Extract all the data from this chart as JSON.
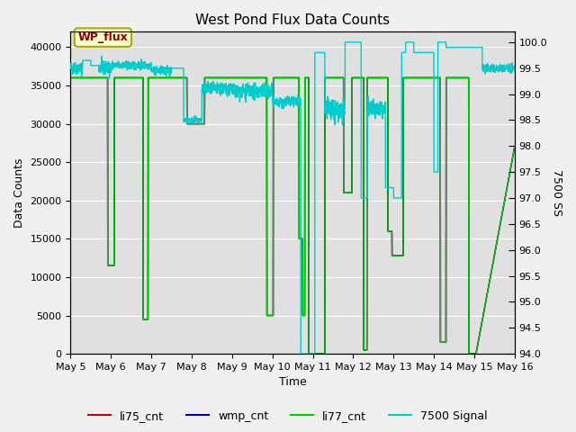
{
  "title": "West Pond Flux Data Counts",
  "xlabel": "Time",
  "ylabel_left": "Data Counts",
  "ylabel_right": "7500 SS",
  "ylim_left": [
    0,
    42000
  ],
  "ylim_right": [
    94.0,
    100.2
  ],
  "legend_labels": [
    "li75_cnt",
    "wmp_cnt",
    "li77_cnt",
    "7500 Signal"
  ],
  "legend_colors": [
    "#cc0000",
    "#000099",
    "#00cc00",
    "#00cccc"
  ],
  "wp_flux_label": "WP_flux",
  "fig_color": "#f0f0f0",
  "plot_bg_color": "#e0e0e0",
  "x_ticks": [
    "May 5",
    "May 6",
    "May 7",
    "May 8",
    "May 9",
    "May 10",
    "May 11",
    "May 12",
    "May 13",
    "May 14",
    "May 15",
    "May 16"
  ],
  "yticks_left": [
    0,
    5000,
    10000,
    15000,
    20000,
    25000,
    30000,
    35000,
    40000
  ],
  "yticks_right": [
    94.0,
    94.5,
    95.0,
    95.5,
    96.0,
    96.5,
    97.0,
    97.5,
    98.0,
    98.5,
    99.0,
    99.5,
    100.0
  ]
}
